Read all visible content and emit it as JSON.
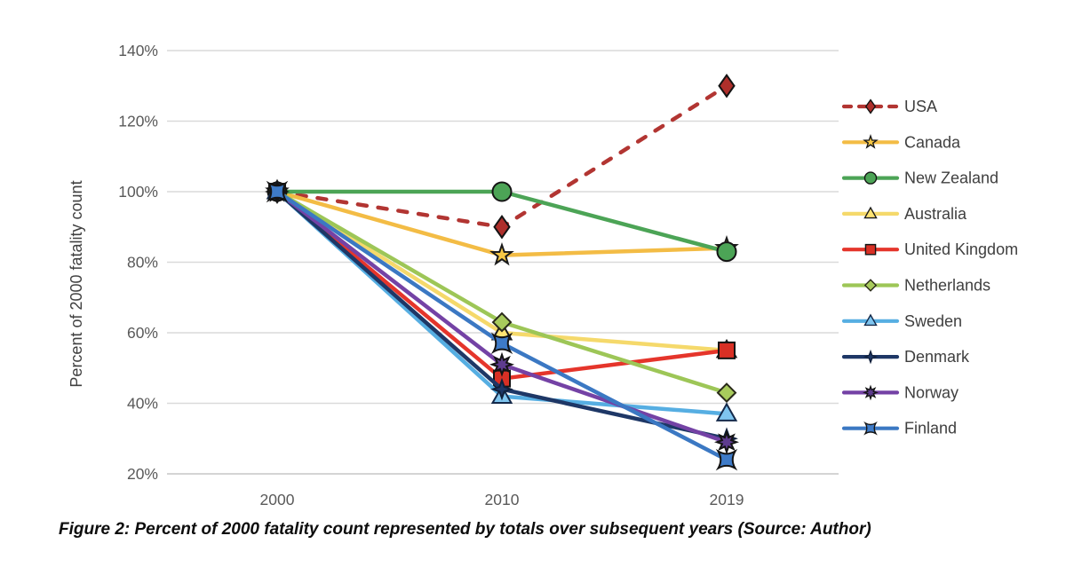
{
  "figure": {
    "caption": "Figure 2: Percent of 2000 fatality count represented by totals over subsequent years (Source: Author)"
  },
  "chart_data": {
    "type": "line",
    "title": "",
    "xlabel": "",
    "ylabel": "Percent of 2000 fatality count",
    "categories": [
      "2000",
      "2010",
      "2019"
    ],
    "ylim": [
      20,
      140
    ],
    "grid": "horizontal",
    "legend_position": "right",
    "y_ticks": [
      {
        "value": 140,
        "label": "140%"
      },
      {
        "value": 120,
        "label": "120%"
      },
      {
        "value": 100,
        "label": "100%"
      },
      {
        "value": 80,
        "label": "80%"
      },
      {
        "value": 60,
        "label": "60%"
      },
      {
        "value": 40,
        "label": "40%"
      },
      {
        "value": 20,
        "label": "20%"
      }
    ],
    "series": [
      {
        "name": "USA",
        "values": [
          100,
          90,
          130
        ],
        "color": "#B23532",
        "dash": true,
        "marker": "diamond-tall",
        "marker_fill": "#AE2F2B",
        "marker_stroke": "#141414"
      },
      {
        "name": "Canada",
        "values": [
          100,
          82,
          84
        ],
        "color": "#F3BC45",
        "dash": false,
        "marker": "star5",
        "marker_fill": "#F7C845",
        "marker_stroke": "#1a1a1a"
      },
      {
        "name": "New Zealand",
        "values": [
          100,
          100,
          83
        ],
        "color": "#4CA456",
        "dash": false,
        "marker": "circle",
        "marker_fill": "#4CA456",
        "marker_stroke": "#141414"
      },
      {
        "name": "Australia",
        "values": [
          100,
          60,
          55
        ],
        "color": "#F5D96B",
        "dash": false,
        "marker": "triangle",
        "marker_fill": "#FFE473",
        "marker_stroke": "#1a1a1a"
      },
      {
        "name": "United Kingdom",
        "values": [
          100,
          47,
          55
        ],
        "color": "#E5352B",
        "dash": false,
        "marker": "square",
        "marker_fill": "#D93025",
        "marker_stroke": "#141414"
      },
      {
        "name": "Netherlands",
        "values": [
          100,
          63,
          43
        ],
        "color": "#9DC657",
        "dash": false,
        "marker": "diamond",
        "marker_fill": "#A8CB5C",
        "marker_stroke": "#2a2a1a"
      },
      {
        "name": "Sweden",
        "values": [
          100,
          42,
          37
        ],
        "color": "#56AEE2",
        "dash": false,
        "marker": "triangle",
        "marker_fill": "#7FC5EF",
        "marker_stroke": "#14294A"
      },
      {
        "name": "Denmark",
        "values": [
          100,
          44,
          30
        ],
        "color": "#1E3766",
        "dash": false,
        "marker": "star4",
        "marker_fill": "#1E3766",
        "marker_stroke": "#10203C"
      },
      {
        "name": "Norway",
        "values": [
          100,
          51,
          29
        ],
        "color": "#7442A5",
        "dash": false,
        "marker": "star8",
        "marker_fill": "#5E3C8E",
        "marker_stroke": "#141414"
      },
      {
        "name": "Finland",
        "values": [
          100,
          57,
          24
        ],
        "color": "#3B78C3",
        "dash": false,
        "marker": "concave-square",
        "marker_fill": "#3E7BC8",
        "marker_stroke": "#141414"
      }
    ]
  }
}
